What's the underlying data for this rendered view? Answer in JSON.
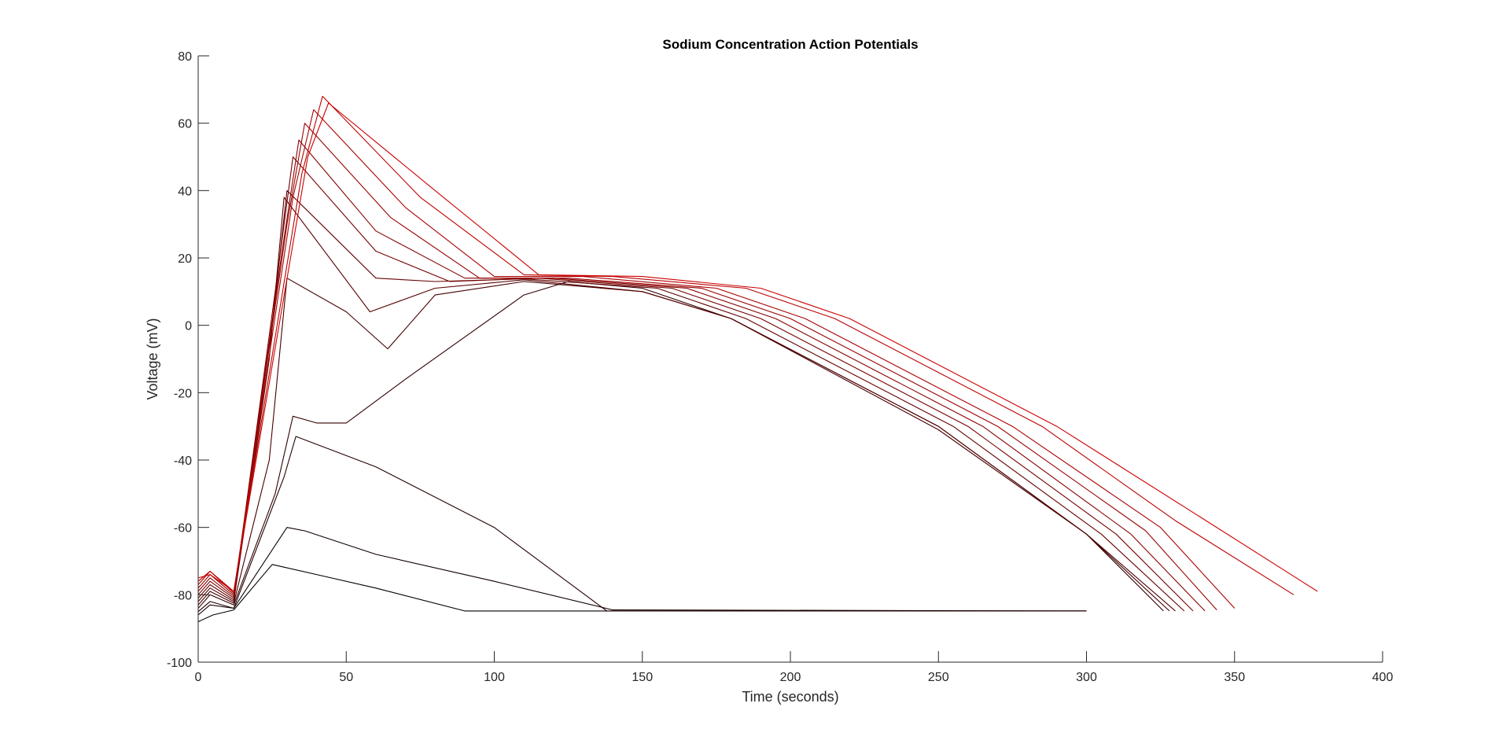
{
  "chart_data": {
    "type": "line",
    "title": "Sodium Concentration Action Potentials",
    "xlabel": "Time (seconds)",
    "ylabel": "Voltage (mV)",
    "xlim": [
      0,
      400
    ],
    "ylim": [
      -100,
      80
    ],
    "xticks": [
      0,
      50,
      100,
      150,
      200,
      250,
      300,
      350,
      400
    ],
    "yticks": [
      -100,
      -80,
      -60,
      -40,
      -20,
      0,
      20,
      40,
      60,
      80
    ],
    "grid": false,
    "legend": "none",
    "color_low": "#000000",
    "color_high": "#cc0000",
    "series": [
      {
        "x": [
          0,
          5,
          12,
          25,
          40,
          60,
          90,
          300
        ],
        "y": [
          -88,
          -86,
          -84.5,
          -71,
          -74,
          -78,
          -84.8,
          -84.8
        ]
      },
      {
        "x": [
          0,
          4,
          12,
          30,
          36,
          60,
          100,
          140,
          300
        ],
        "y": [
          -86,
          -83,
          -84,
          -60,
          -61,
          -68,
          -76,
          -84.5,
          -84.8
        ]
      },
      {
        "x": [
          0,
          4,
          12,
          29,
          33,
          60,
          100,
          138,
          300
        ],
        "y": [
          -85,
          -82,
          -84,
          -45,
          -33,
          -42,
          -60,
          -84.8,
          -84.8
        ]
      },
      {
        "x": [
          0,
          4,
          12,
          26,
          32,
          40,
          50,
          70,
          110,
          125,
          150,
          180,
          250,
          300,
          326
        ],
        "y": [
          -84,
          -80,
          -83,
          -50,
          -27,
          -29,
          -29,
          -16,
          9,
          13,
          11,
          2,
          -30,
          -62,
          -84.8
        ]
      },
      {
        "x": [
          0,
          4,
          12,
          24,
          30,
          50,
          64,
          80,
          110,
          150,
          180,
          250,
          300,
          328
        ],
        "y": [
          -83,
          -79,
          -82.5,
          -40,
          14,
          4,
          -7,
          9,
          13,
          10,
          2,
          -31,
          -62,
          -84.8
        ]
      },
      {
        "x": [
          0,
          4,
          12,
          24,
          29,
          58,
          80,
          110,
          150,
          180,
          250,
          300,
          330
        ],
        "y": [
          -82,
          -78,
          -82,
          -10,
          38,
          4,
          11,
          13.5,
          10,
          2,
          -30,
          -62,
          -84.8
        ]
      },
      {
        "x": [
          0,
          4,
          12,
          25,
          30,
          60,
          80,
          110,
          155,
          185,
          255,
          305,
          333
        ],
        "y": [
          -81,
          -77,
          -81.5,
          0,
          40,
          14,
          13,
          13.8,
          11,
          2,
          -30,
          -62,
          -84.8
        ]
      },
      {
        "x": [
          0,
          4,
          12,
          26,
          32,
          60,
          85,
          115,
          160,
          190,
          260,
          310,
          336
        ],
        "y": [
          -80,
          -76,
          -81,
          10,
          50,
          22,
          13,
          14,
          11,
          2,
          -30,
          -62,
          -84.8
        ]
      },
      {
        "x": [
          0,
          4,
          12,
          28,
          34,
          60,
          90,
          120,
          165,
          195,
          265,
          315,
          340
        ],
        "y": [
          -79,
          -75,
          -80.5,
          20,
          55,
          28,
          14,
          14,
          11,
          2,
          -30,
          -62,
          -84.8
        ]
      },
      {
        "x": [
          0,
          4,
          12,
          30,
          36,
          65,
          95,
          125,
          170,
          200,
          270,
          320,
          344
        ],
        "y": [
          -78,
          -74,
          -80,
          30,
          60,
          32,
          14,
          14,
          11,
          2,
          -30,
          -61,
          -84.5
        ]
      },
      {
        "x": [
          0,
          4,
          12,
          32,
          39,
          70,
          100,
          130,
          175,
          205,
          275,
          325,
          350
        ],
        "y": [
          -77,
          -73,
          -79.5,
          38,
          64,
          35,
          14.5,
          14.5,
          11,
          2,
          -30,
          -60,
          -84
        ]
      },
      {
        "x": [
          0,
          4,
          12,
          35,
          42,
          75,
          110,
          140,
          185,
          215,
          285,
          330,
          370
        ],
        "y": [
          -76,
          -73,
          -79,
          45,
          68,
          38,
          15,
          14.5,
          11,
          2,
          -30,
          -58,
          -80
        ]
      },
      {
        "x": [
          0,
          4,
          12,
          37,
          44,
          80,
          115,
          150,
          190,
          220,
          290,
          335,
          378
        ],
        "y": [
          -75,
          -74,
          -79,
          50,
          66,
          40,
          15,
          14.5,
          11,
          2,
          -30,
          -55,
          -79
        ]
      }
    ]
  }
}
